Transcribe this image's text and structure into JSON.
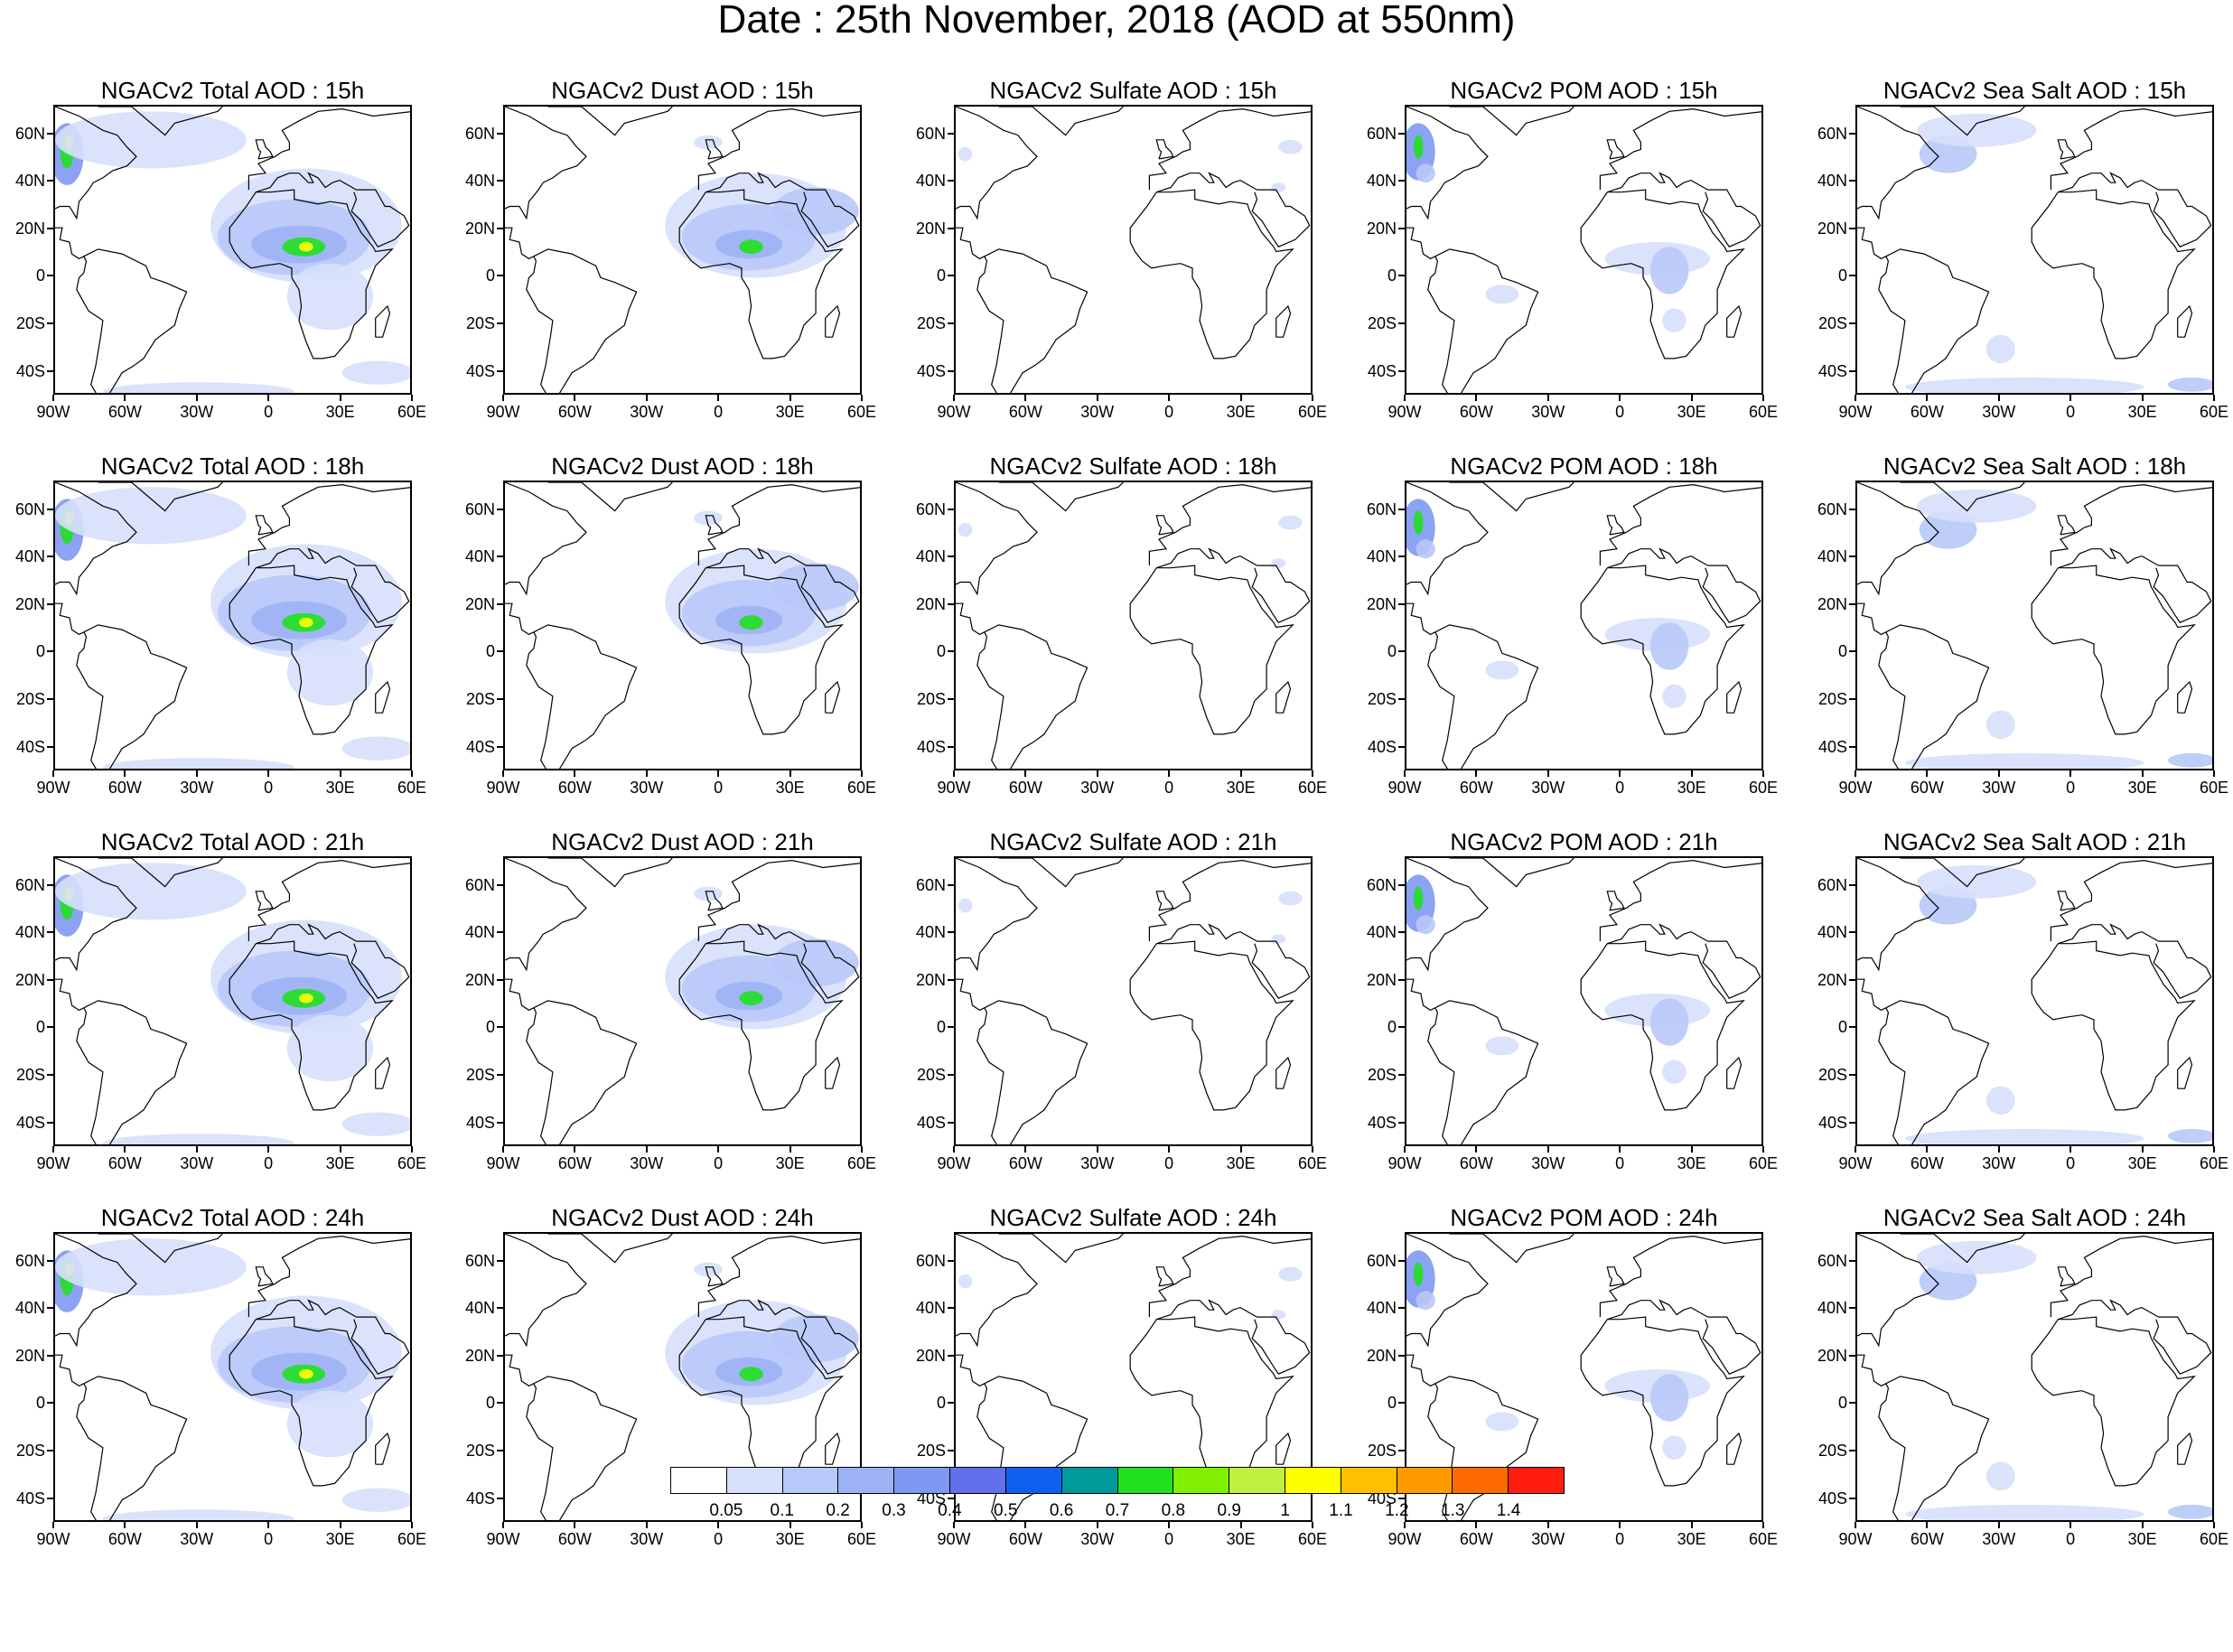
{
  "title": "Date : 25th November, 2018 (AOD at 550nm)",
  "panels": [
    [
      "NGACv2 Total AOD : 15h",
      "NGACv2 Dust AOD : 15h",
      "NGACv2 Sulfate AOD : 15h",
      "NGACv2 POM AOD : 15h",
      "NGACv2 Sea Salt AOD : 15h"
    ],
    [
      "NGACv2 Total AOD : 18h",
      "NGACv2 Dust AOD : 18h",
      "NGACv2 Sulfate AOD : 18h",
      "NGACv2 POM AOD : 18h",
      "NGACv2 Sea Salt AOD : 18h"
    ],
    [
      "NGACv2 Total AOD : 21h",
      "NGACv2 Dust AOD : 21h",
      "NGACv2 Sulfate AOD : 21h",
      "NGACv2 POM AOD : 21h",
      "NGACv2 Sea Salt AOD : 21h"
    ],
    [
      "NGACv2 Total AOD : 24h",
      "NGACv2 Dust AOD : 24h",
      "NGACv2 Sulfate AOD : 24h",
      "NGACv2 POM AOD : 24h",
      "NGACv2 Sea Salt  AOD : 24h"
    ]
  ],
  "lat_labels": [
    "60N",
    "40N",
    "20N",
    "0",
    "20S",
    "40S"
  ],
  "lon_labels": [
    "90W",
    "60W",
    "30W",
    "0",
    "30E",
    "60E"
  ],
  "colorbar": {
    "labels": [
      "0.05",
      "0.1",
      "0.2",
      "0.3",
      "0.4",
      "0.5",
      "0.6",
      "0.7",
      "0.8",
      "0.9",
      "1",
      "1.1",
      "1.2",
      "1.3",
      "1.4"
    ],
    "colors": [
      "#ffffff",
      "#d6e0fb",
      "#b8c8f8",
      "#9db2f5",
      "#7f98f2",
      "#6270ec",
      "#1060f0",
      "#009a9a",
      "#20e020",
      "#80f000",
      "#c0f040",
      "#ffff00",
      "#ffc000",
      "#ff9a00",
      "#ff6a00",
      "#ff1c10"
    ]
  },
  "map_extent": {
    "lon": [
      -90,
      60
    ],
    "lat": [
      -50,
      72
    ]
  }
}
